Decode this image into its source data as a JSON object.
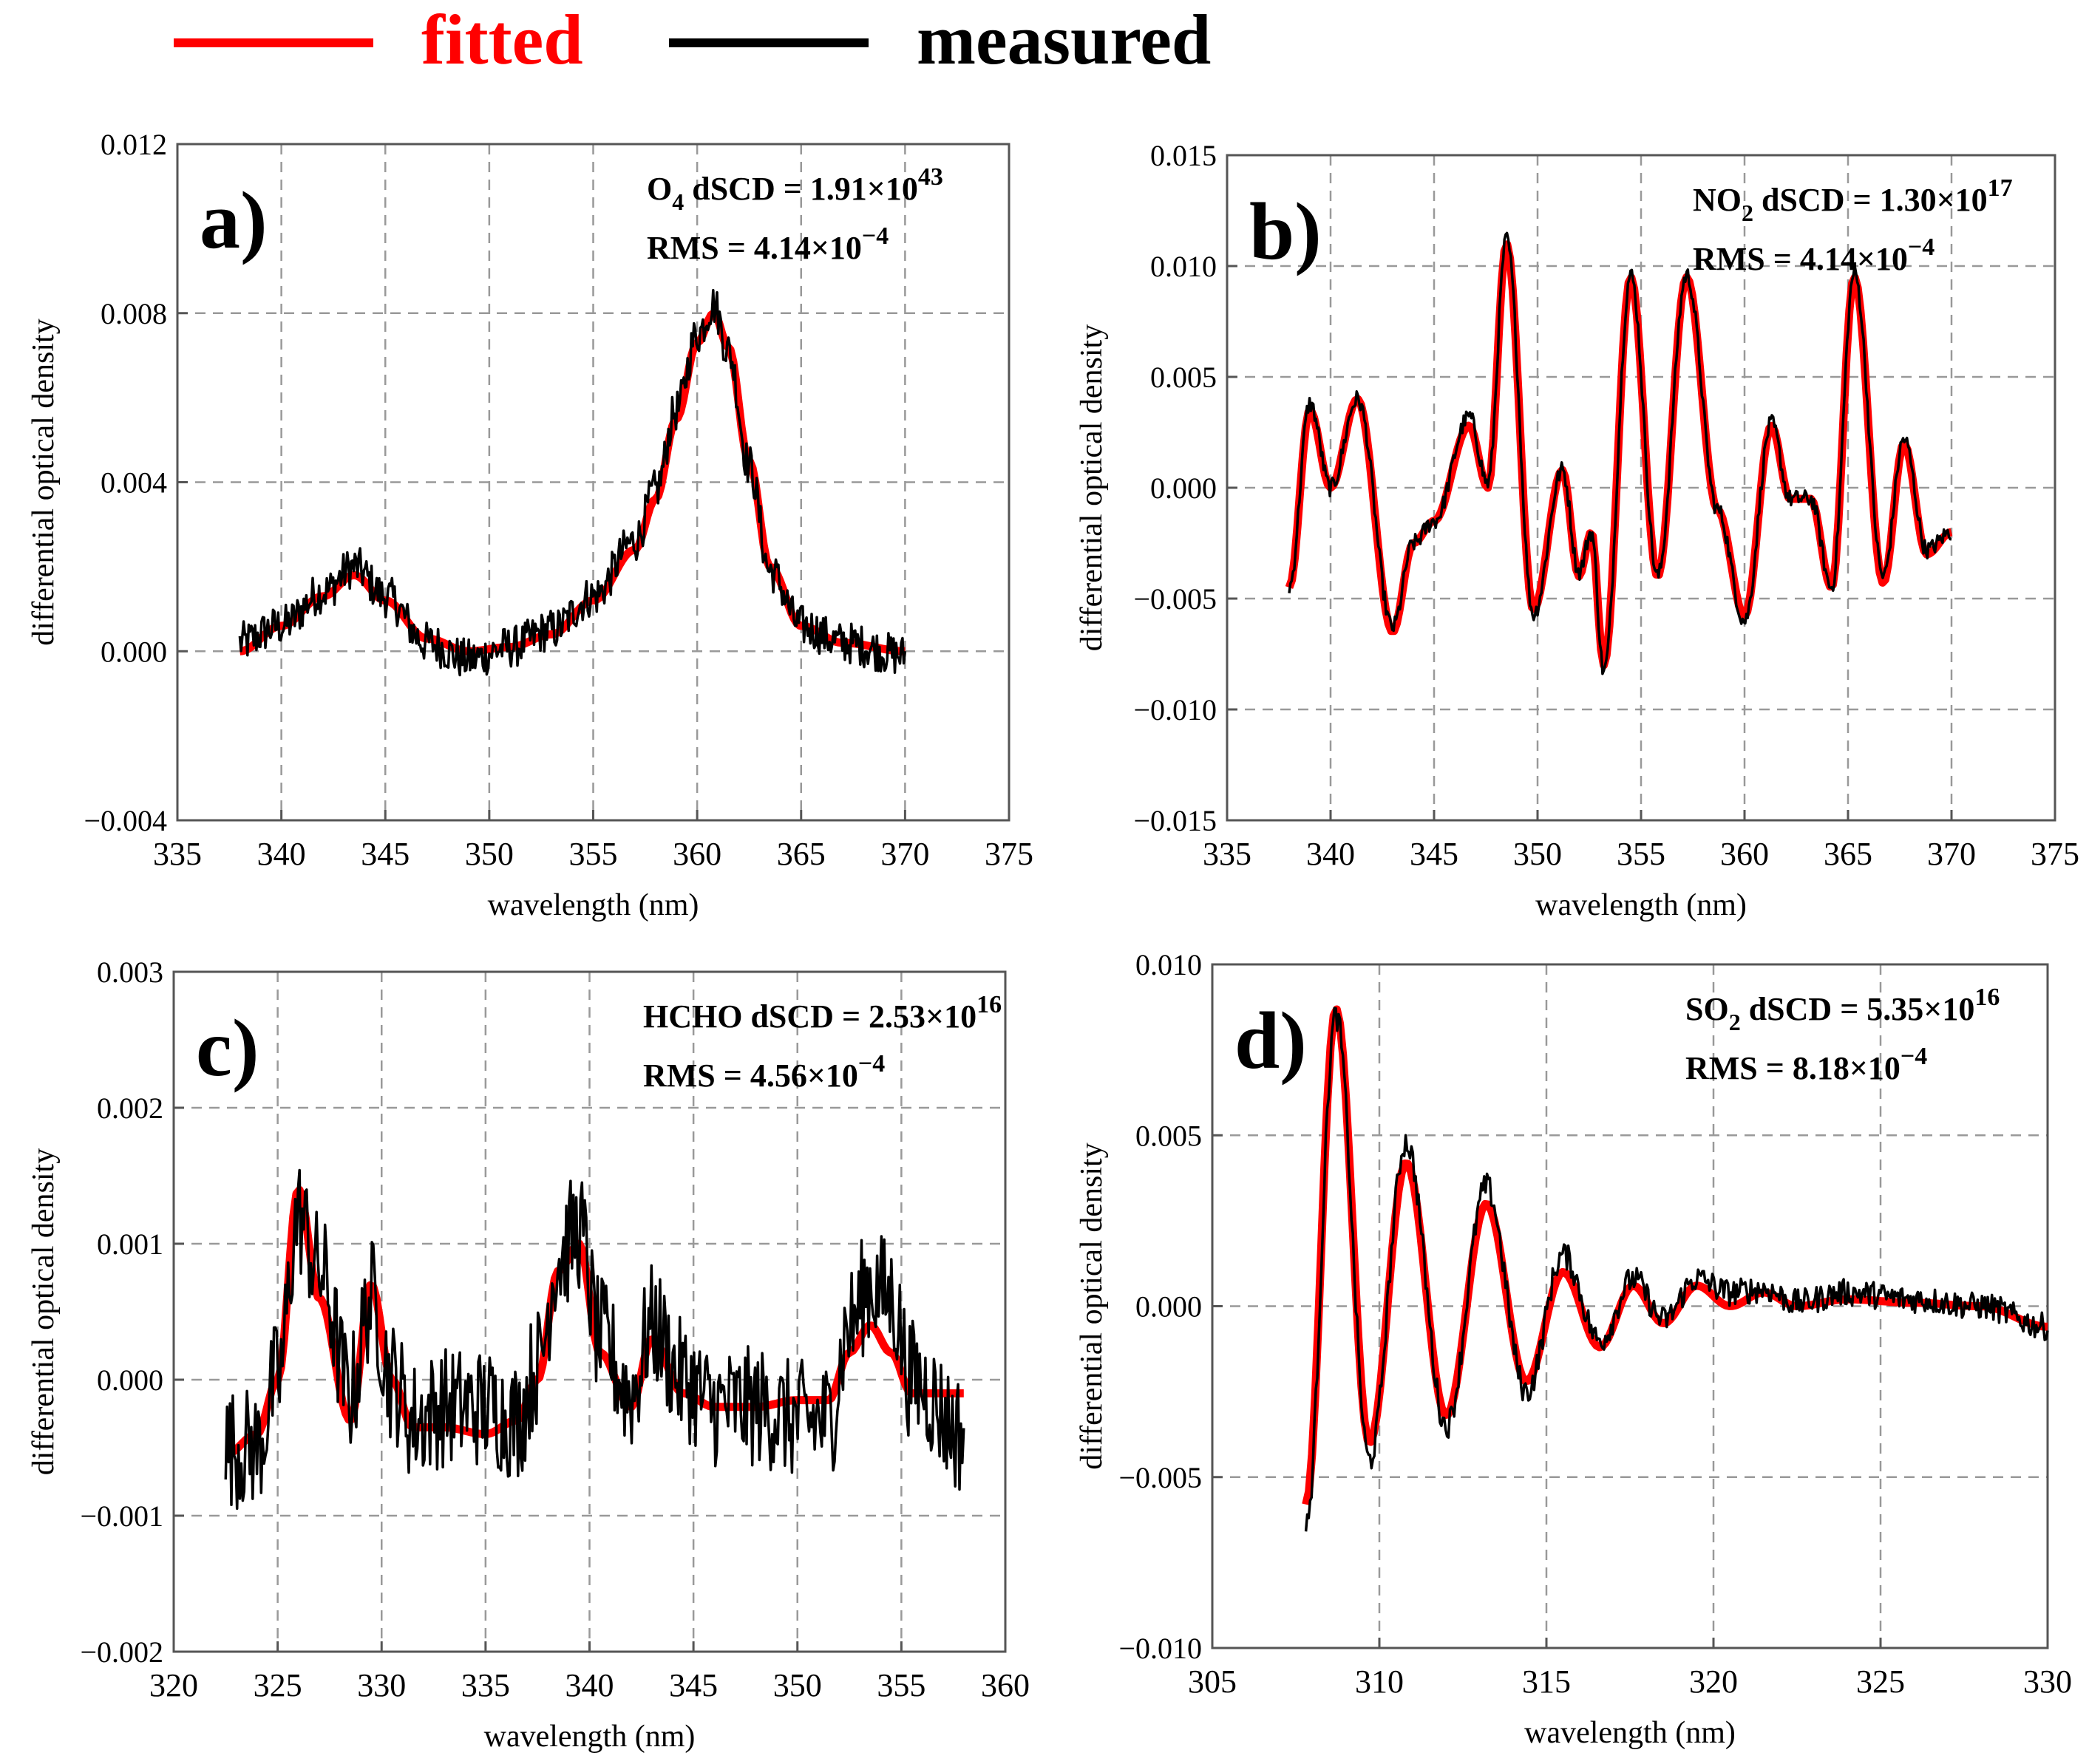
{
  "legend": {
    "fitted_label": "fitted",
    "measured_label": "measured",
    "fitted_color": "#ff0000",
    "measured_color": "#000000"
  },
  "chart_data": [
    {
      "type": "line",
      "panel_label": "a)",
      "xlabel": "wavelength (nm)",
      "ylabel": "differential optical density",
      "xlim": [
        335,
        375
      ],
      "ylim": [
        -0.004,
        0.012
      ],
      "xticks": [
        "335",
        "340",
        "345",
        "350",
        "355",
        "360",
        "365",
        "370",
        "375"
      ],
      "yticks": [
        "-0.004",
        "0.000",
        "0.004",
        "0.008",
        "0.012"
      ],
      "grid": true,
      "annotation": {
        "species": "O",
        "sub": "4",
        "dscd_text": " dSCD = 1.91×10",
        "dscd_exp": "43",
        "rms_text": "RMS = 4.14×10",
        "rms_exp": "-4"
      },
      "series": [
        {
          "name": "fitted",
          "color": "#ff0000",
          "x": [
            338,
            340,
            342,
            343.5,
            345,
            347,
            349,
            351,
            353,
            355,
            357,
            358,
            359,
            360,
            360.8,
            361.5,
            362.5,
            363.5,
            365,
            367,
            370
          ],
          "y": [
            0.0,
            0.0006,
            0.0013,
            0.0018,
            0.0012,
            0.0003,
            0.0,
            0.0001,
            0.0004,
            0.0012,
            0.0024,
            0.0036,
            0.0055,
            0.0073,
            0.008,
            0.0072,
            0.0045,
            0.002,
            0.0006,
            0.0002,
            0.0
          ]
        },
        {
          "name": "measured",
          "color": "#000000",
          "noise": 0.0005,
          "x": [
            338,
            340,
            342,
            343.5,
            345,
            347,
            349,
            351,
            353,
            355,
            357,
            358,
            359,
            360,
            360.8,
            361.5,
            362.5,
            363.5,
            365,
            367,
            370
          ],
          "y": [
            0.0002,
            0.0006,
            0.0014,
            0.002,
            0.0013,
            0.0002,
            -0.0002,
            0.0001,
            0.0005,
            0.0013,
            0.0026,
            0.0038,
            0.0057,
            0.0075,
            0.0082,
            0.0071,
            0.0044,
            0.0019,
            0.0006,
            0.0002,
            -0.0001
          ]
        }
      ]
    },
    {
      "type": "line",
      "panel_label": "b)",
      "xlabel": "wavelength (nm)",
      "ylabel": "differential optical density",
      "xlim": [
        335,
        375
      ],
      "ylim": [
        -0.015,
        0.015
      ],
      "xticks": [
        "335",
        "340",
        "345",
        "350",
        "355",
        "360",
        "365",
        "370",
        "375"
      ],
      "yticks": [
        "-0.015",
        "-0.010",
        "-0.005",
        "0.000",
        "0.005",
        "0.010",
        "0.015"
      ],
      "grid": true,
      "annotation": {
        "species": "NO",
        "sub": "2",
        "dscd_text": " dSCD = 1.30×10",
        "dscd_exp": "17",
        "rms_text": "RMS = 4.14×10",
        "rms_exp": "-4"
      },
      "series": [
        {
          "name": "fitted",
          "color": "#ff0000",
          "x": [
            338,
            339,
            340,
            341.3,
            343,
            344,
            345,
            346.7,
            347.6,
            348.5,
            349.8,
            351.2,
            352,
            352.6,
            353.2,
            354.5,
            355.8,
            357.2,
            358.7,
            360,
            361.3,
            362.2,
            363.2,
            364.2,
            365.3,
            366.7,
            367.7,
            368.8,
            370
          ],
          "y": [
            -0.0045,
            0.0035,
            0.0,
            0.004,
            -0.0065,
            -0.0025,
            -0.0015,
            0.0028,
            0.0,
            0.011,
            -0.0055,
            0.0008,
            -0.004,
            -0.002,
            -0.008,
            0.0095,
            -0.004,
            0.0095,
            -0.001,
            -0.0058,
            0.0028,
            -0.0005,
            -0.0005,
            -0.0045,
            0.0095,
            -0.0043,
            0.002,
            -0.003,
            -0.002
          ]
        },
        {
          "name": "measured",
          "color": "#000000",
          "noise": 0.0004,
          "x": [
            338,
            339,
            340,
            341.3,
            343,
            344,
            345,
            346.7,
            347.6,
            348.5,
            349.8,
            351.2,
            352,
            352.6,
            353.2,
            354.5,
            355.8,
            357.2,
            358.7,
            360,
            361.3,
            362.2,
            363.2,
            364.2,
            365.3,
            366.7,
            367.7,
            368.8,
            370
          ],
          "y": [
            -0.0045,
            0.0038,
            0.0,
            0.004,
            -0.0063,
            -0.0025,
            -0.0015,
            0.0032,
            0.0002,
            0.0112,
            -0.0057,
            0.0008,
            -0.0038,
            -0.002,
            -0.0083,
            0.0096,
            -0.004,
            0.0096,
            -0.001,
            -0.006,
            0.0029,
            -0.0005,
            -0.0005,
            -0.0045,
            0.0097,
            -0.004,
            0.0022,
            -0.0028,
            -0.002
          ]
        }
      ]
    },
    {
      "type": "line",
      "panel_label": "c)",
      "xlabel": "wavelength (nm)",
      "ylabel": "differential optical density",
      "xlim": [
        320,
        360
      ],
      "ylim": [
        -0.002,
        0.003
      ],
      "xticks": [
        "320",
        "325",
        "330",
        "335",
        "340",
        "345",
        "350",
        "355",
        "360"
      ],
      "yticks": [
        "-0.002",
        "-0.001",
        "0.000",
        "0.001",
        "0.002",
        "0.003"
      ],
      "grid": true,
      "annotation": {
        "species": "HCHO",
        "sub": "",
        "dscd_text": " dSCD = 2.53×10",
        "dscd_exp": "16",
        "rms_text": "RMS = 4.56×10",
        "rms_exp": "-4"
      },
      "series": [
        {
          "name": "fitted",
          "color": "#ff0000",
          "x": [
            322.5,
            324,
            325,
            326,
            327,
            328.5,
            329.5,
            330.5,
            331.5,
            333,
            335,
            336.5,
            337.5,
            338.5,
            339.5,
            340.5,
            342,
            343,
            344.5,
            346,
            348,
            350,
            351.5,
            352.5,
            353.5,
            354.5,
            355.5,
            358
          ],
          "y": [
            -0.00055,
            -0.0004,
            0.0,
            0.0014,
            0.0006,
            -0.0003,
            0.0007,
            0.0,
            -0.00035,
            -0.00035,
            -0.0004,
            -0.0003,
            0.0,
            0.0008,
            0.001,
            0.0002,
            -0.0002,
            0.0003,
            -0.0001,
            -0.0002,
            -0.0002,
            -0.00015,
            -0.00015,
            0.0002,
            0.0004,
            0.0002,
            -0.0001,
            -0.0001
          ]
        },
        {
          "name": "measured",
          "color": "#000000",
          "noise": 0.00045,
          "x": [
            322.5,
            324,
            325,
            326,
            327,
            328.5,
            329.5,
            330.5,
            331.5,
            333,
            335,
            336.5,
            337.5,
            338.5,
            339.5,
            340.5,
            342,
            343,
            344.5,
            346,
            348,
            350,
            351.5,
            352.5,
            353.5,
            354.5,
            355.5,
            358
          ],
          "y": [
            -0.0005,
            -0.0005,
            0.0,
            0.0012,
            0.0008,
            -0.0001,
            0.0006,
            0.0,
            -0.0003,
            -0.0002,
            -0.0002,
            -0.0003,
            0.0001,
            0.0009,
            0.0011,
            0.0003,
            -0.0001,
            0.0004,
            0.0,
            -0.0002,
            -0.0002,
            -0.0003,
            -0.0003,
            0.0004,
            0.0007,
            0.0006,
            0.0,
            -0.0004
          ]
        }
      ]
    },
    {
      "type": "line",
      "panel_label": "d)",
      "xlabel": "wavelength (nm)",
      "ylabel": "differential optical density",
      "xlim": [
        305,
        330
      ],
      "ylim": [
        -0.01,
        0.01
      ],
      "xticks": [
        "305",
        "310",
        "315",
        "320",
        "325",
        "330"
      ],
      "yticks": [
        "-0.010",
        "-0.005",
        "0.000",
        "0.005",
        "0.010"
      ],
      "grid": true,
      "annotation": {
        "species": "SO",
        "sub": "2",
        "dscd_text": " dSCD = 5.35×10",
        "dscd_exp": "16",
        "rms_text": "RMS = 8.18×10",
        "rms_exp": "-4"
      },
      "series": [
        {
          "name": "fitted",
          "color": "#ff0000",
          "x": [
            307.8,
            308.7,
            309.7,
            310.8,
            312,
            313.2,
            314.4,
            315.5,
            316.6,
            317.6,
            318.5,
            319.5,
            320.5,
            321.5,
            322.5,
            324,
            326,
            328,
            330
          ],
          "y": [
            -0.0058,
            0.0087,
            -0.004,
            0.0042,
            -0.0032,
            0.003,
            -0.0022,
            0.001,
            -0.0012,
            0.0006,
            -0.0005,
            0.0006,
            0.0,
            0.0004,
            0.0,
            0.0002,
            0.0001,
            0.0,
            -0.0006
          ]
        },
        {
          "name": "measured",
          "color": "#000000",
          "noise": 0.0004,
          "x": [
            307.8,
            308.7,
            309.7,
            310.8,
            312,
            313.2,
            314.4,
            315.5,
            316.6,
            317.6,
            318.5,
            319.5,
            320.5,
            321.5,
            322.5,
            324,
            326,
            328,
            330
          ],
          "y": [
            -0.0065,
            0.0085,
            -0.0045,
            0.0048,
            -0.0035,
            0.0035,
            -0.0025,
            0.0015,
            -0.001,
            0.0008,
            -0.0004,
            0.0008,
            0.0004,
            0.0005,
            0.0001,
            0.0004,
            0.0002,
            0.0,
            -0.0006
          ]
        }
      ]
    }
  ]
}
